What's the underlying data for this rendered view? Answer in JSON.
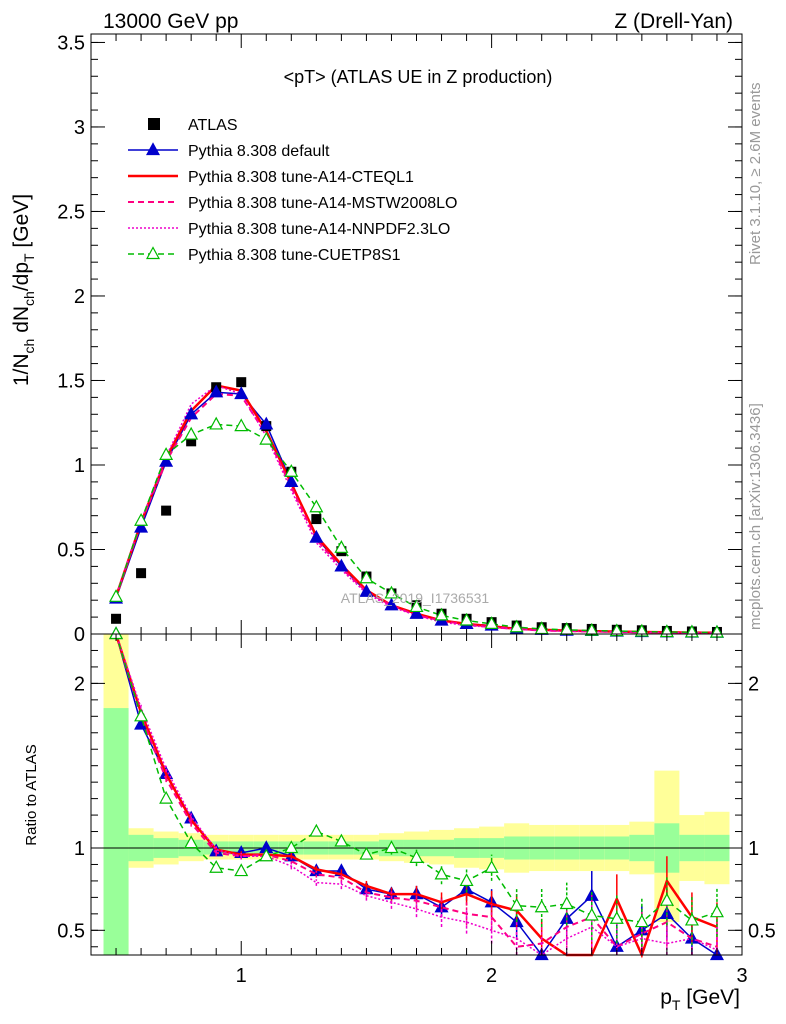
{
  "header": {
    "left": "13000 GeV pp",
    "right": "Z (Drell-Yan)"
  },
  "side_text": {
    "rivet": "Rivet 3.1.10, ≥ 2.6M events",
    "mcplots": "mcplots.cern.ch [arXiv:1306.3436]"
  },
  "watermark": "ATLAS_2019_I1736531",
  "colors": {
    "atlas": "#000000",
    "default": "#0000cc",
    "a14_cteql1": "#ff0000",
    "a14_mstw": "#ff0080",
    "a14_nnpdf": "#ee00cc",
    "cuetp8s1": "#00bb00",
    "band_inner": "#99ff99",
    "band_outer": "#ffff99"
  },
  "chart_data": [
    {
      "type": "line",
      "panel": "main",
      "title": "<pT> (ATLAS UE in Z production)",
      "ylabel": "1/N_ch dN_ch/dp_T [GeV]",
      "xlim": [
        0.4,
        3.0
      ],
      "ylim": [
        0,
        3.55
      ],
      "yticks": [
        "0",
        "0.5",
        "1",
        "1.5",
        "2",
        "2.5",
        "3",
        "3.5"
      ],
      "legend_position": "top-left",
      "x": [
        0.5,
        0.6,
        0.7,
        0.8,
        0.9,
        1.0,
        1.1,
        1.2,
        1.3,
        1.4,
        1.5,
        1.6,
        1.7,
        1.8,
        1.9,
        2.0,
        2.1,
        2.2,
        2.3,
        2.4,
        2.5,
        2.6,
        2.7,
        2.8,
        2.9
      ],
      "series": [
        {
          "name": "ATLAS",
          "key": "atlas",
          "style": "marker",
          "values": [
            0.09,
            0.36,
            0.73,
            1.14,
            1.46,
            1.49,
            1.23,
            0.96,
            0.68,
            0.49,
            0.34,
            0.24,
            0.17,
            0.12,
            0.09,
            0.07,
            0.05,
            0.04,
            0.035,
            0.03,
            0.025,
            0.022,
            0.018,
            0.015,
            0.012
          ]
        },
        {
          "name": "Pythia 8.308 default",
          "key": "default",
          "style": "solid-tri",
          "values": [
            0.21,
            0.63,
            1.02,
            1.3,
            1.43,
            1.42,
            1.24,
            0.9,
            0.57,
            0.4,
            0.25,
            0.17,
            0.12,
            0.08,
            0.06,
            0.05,
            0.03,
            0.025,
            0.02,
            0.018,
            0.015,
            0.012,
            0.01,
            0.009,
            0.008
          ]
        },
        {
          "name": "Pythia 8.308 tune-A14-CTEQL1",
          "key": "a14_cteql1",
          "style": "solid",
          "values": [
            0.22,
            0.66,
            1.04,
            1.32,
            1.47,
            1.44,
            1.2,
            0.89,
            0.58,
            0.41,
            0.26,
            0.17,
            0.12,
            0.08,
            0.06,
            0.045,
            0.03,
            0.025,
            0.02,
            0.017,
            0.014,
            0.012,
            0.01,
            0.008,
            0.007
          ]
        },
        {
          "name": "Pythia 8.308 tune-A14-MSTW2008LO",
          "key": "a14_mstw",
          "style": "dashed",
          "values": [
            0.22,
            0.66,
            1.02,
            1.28,
            1.42,
            1.41,
            1.18,
            0.87,
            0.56,
            0.39,
            0.25,
            0.17,
            0.11,
            0.08,
            0.055,
            0.04,
            0.03,
            0.02,
            0.017,
            0.015,
            0.012,
            0.01,
            0.009,
            0.008,
            0.007
          ]
        },
        {
          "name": "Pythia 8.308 tune-A14-NNPDF2.3LO",
          "key": "a14_nnpdf",
          "style": "dotted",
          "values": [
            0.22,
            0.67,
            1.05,
            1.36,
            1.47,
            1.42,
            1.17,
            0.85,
            0.54,
            0.38,
            0.24,
            0.16,
            0.11,
            0.07,
            0.05,
            0.04,
            0.028,
            0.02,
            0.016,
            0.014,
            0.012,
            0.01,
            0.008,
            0.007,
            0.006
          ]
        },
        {
          "name": "Pythia 8.308 tune-CUETP8S1",
          "key": "cuetp8s1",
          "style": "dashed-tri",
          "values": [
            0.22,
            0.67,
            1.06,
            1.18,
            1.24,
            1.23,
            1.15,
            0.96,
            0.75,
            0.51,
            0.33,
            0.24,
            0.16,
            0.11,
            0.08,
            0.06,
            0.04,
            0.03,
            0.025,
            0.02,
            0.017,
            0.015,
            0.012,
            0.01,
            0.009
          ]
        }
      ]
    },
    {
      "type": "line",
      "panel": "ratio",
      "ylabel": "Ratio to ATLAS",
      "xlabel": "p_T [GeV]",
      "xlim": [
        0.4,
        3.0
      ],
      "ylim": [
        0.35,
        2.3
      ],
      "yticks": [
        "0.5",
        "1",
        "2"
      ],
      "xticks": [
        "1",
        "2",
        "3"
      ],
      "x": [
        0.5,
        0.6,
        0.7,
        0.8,
        0.9,
        1.0,
        1.1,
        1.2,
        1.3,
        1.4,
        1.5,
        1.6,
        1.7,
        1.8,
        1.9,
        2.0,
        2.1,
        2.2,
        2.3,
        2.4,
        2.5,
        2.6,
        2.7,
        2.8,
        2.9
      ],
      "bands": {
        "inner_low": [
          0.35,
          0.92,
          0.94,
          0.95,
          0.96,
          0.96,
          0.96,
          0.96,
          0.96,
          0.96,
          0.96,
          0.95,
          0.95,
          0.95,
          0.94,
          0.94,
          0.93,
          0.93,
          0.93,
          0.93,
          0.93,
          0.92,
          0.85,
          0.92,
          0.92
        ],
        "inner_high": [
          1.85,
          1.08,
          1.06,
          1.05,
          1.04,
          1.04,
          1.04,
          1.04,
          1.04,
          1.04,
          1.04,
          1.05,
          1.05,
          1.05,
          1.06,
          1.06,
          1.07,
          1.07,
          1.07,
          1.07,
          1.07,
          1.08,
          1.15,
          1.08,
          1.08
        ],
        "outer_low": [
          0.35,
          0.88,
          0.9,
          0.92,
          0.93,
          0.93,
          0.93,
          0.93,
          0.93,
          0.93,
          0.93,
          0.92,
          0.91,
          0.9,
          0.88,
          0.87,
          0.85,
          0.86,
          0.86,
          0.86,
          0.86,
          0.84,
          0.55,
          0.8,
          0.78
        ],
        "outer_high": [
          2.3,
          1.12,
          1.1,
          1.09,
          1.08,
          1.08,
          1.08,
          1.08,
          1.08,
          1.08,
          1.08,
          1.09,
          1.1,
          1.11,
          1.12,
          1.13,
          1.15,
          1.14,
          1.14,
          1.14,
          1.14,
          1.16,
          1.47,
          1.2,
          1.22
        ]
      },
      "series": [
        {
          "name": "Pythia 8.308 default",
          "key": "default",
          "style": "solid-tri",
          "values": [
            2.3,
            1.75,
            1.45,
            1.18,
            0.98,
            0.97,
            1.0,
            0.95,
            0.86,
            0.86,
            0.75,
            0.72,
            0.72,
            0.64,
            0.75,
            0.67,
            0.55,
            0.25,
            0.57,
            0.71,
            0.4,
            0.5,
            0.6,
            0.45,
            0.2
          ],
          "errors": [
            0,
            0.02,
            0.02,
            0.02,
            0.02,
            0.02,
            0.02,
            0.02,
            0.02,
            0.03,
            0.03,
            0.04,
            0.05,
            0.06,
            0.07,
            0.08,
            0.1,
            0.12,
            0.13,
            0.15,
            0.15,
            0.15,
            0.15,
            0.15,
            0.15
          ]
        },
        {
          "name": "Pythia 8.308 tune-A14-CTEQL1",
          "key": "a14_cteql1",
          "style": "solid",
          "values": [
            2.4,
            1.82,
            1.45,
            1.17,
            0.99,
            0.96,
            0.96,
            0.95,
            0.87,
            0.84,
            0.77,
            0.72,
            0.72,
            0.67,
            0.72,
            0.66,
            0.62,
            0.45,
            0.15,
            0.3,
            0.69,
            0.35,
            0.8,
            0.58,
            0.52
          ],
          "errors": [
            0,
            0.02,
            0.02,
            0.02,
            0.02,
            0.02,
            0.02,
            0.02,
            0.02,
            0.03,
            0.03,
            0.04,
            0.05,
            0.06,
            0.07,
            0.08,
            0.1,
            0.12,
            0.13,
            0.15,
            0.15,
            0.15,
            0.15,
            0.15,
            0.15
          ]
        },
        {
          "name": "Pythia 8.308 tune-A14-MSTW2008LO",
          "key": "a14_mstw",
          "style": "dashed",
          "values": [
            2.42,
            1.8,
            1.42,
            1.15,
            0.97,
            0.95,
            0.96,
            0.92,
            0.84,
            0.82,
            0.73,
            0.7,
            0.68,
            0.64,
            0.6,
            0.58,
            0.4,
            0.42,
            0.52,
            0.58,
            0.4,
            0.48,
            0.55,
            0.45,
            0.4
          ],
          "errors": [
            0,
            0.02,
            0.02,
            0.02,
            0.02,
            0.02,
            0.02,
            0.02,
            0.02,
            0.03,
            0.03,
            0.04,
            0.05,
            0.06,
            0.07,
            0.08,
            0.1,
            0.12,
            0.13,
            0.15,
            0.15,
            0.15,
            0.15,
            0.15,
            0.15
          ]
        },
        {
          "name": "Pythia 8.308 tune-A14-NNPDF2.3LO",
          "key": "a14_nnpdf",
          "style": "dotted",
          "values": [
            2.42,
            1.85,
            1.48,
            1.19,
            0.99,
            0.95,
            0.95,
            0.89,
            0.79,
            0.78,
            0.71,
            0.67,
            0.63,
            0.58,
            0.55,
            0.5,
            0.45,
            0.35,
            0.45,
            0.52,
            0.4,
            0.45,
            0.42,
            0.45,
            0.38
          ],
          "errors": [
            0,
            0.02,
            0.02,
            0.02,
            0.02,
            0.02,
            0.02,
            0.02,
            0.02,
            0.03,
            0.03,
            0.04,
            0.05,
            0.06,
            0.07,
            0.08,
            0.1,
            0.12,
            0.13,
            0.15,
            0.15,
            0.15,
            0.15,
            0.15,
            0.15
          ]
        },
        {
          "name": "Pythia 8.308 tune-CUETP8S1",
          "key": "cuetp8s1",
          "style": "dashed-tri",
          "values": [
            2.42,
            1.8,
            1.3,
            1.03,
            0.88,
            0.86,
            0.95,
            1.0,
            1.1,
            1.04,
            0.96,
            1.0,
            0.94,
            0.84,
            0.8,
            0.88,
            0.65,
            0.64,
            0.66,
            0.59,
            0.57,
            0.55,
            0.68,
            0.56,
            0.61
          ],
          "errors": [
            0,
            0.02,
            0.02,
            0.02,
            0.02,
            0.02,
            0.02,
            0.02,
            0.02,
            0.03,
            0.03,
            0.04,
            0.05,
            0.06,
            0.07,
            0.08,
            0.1,
            0.12,
            0.13,
            0.15,
            0.15,
            0.15,
            0.15,
            0.15,
            0.15
          ]
        }
      ]
    }
  ]
}
